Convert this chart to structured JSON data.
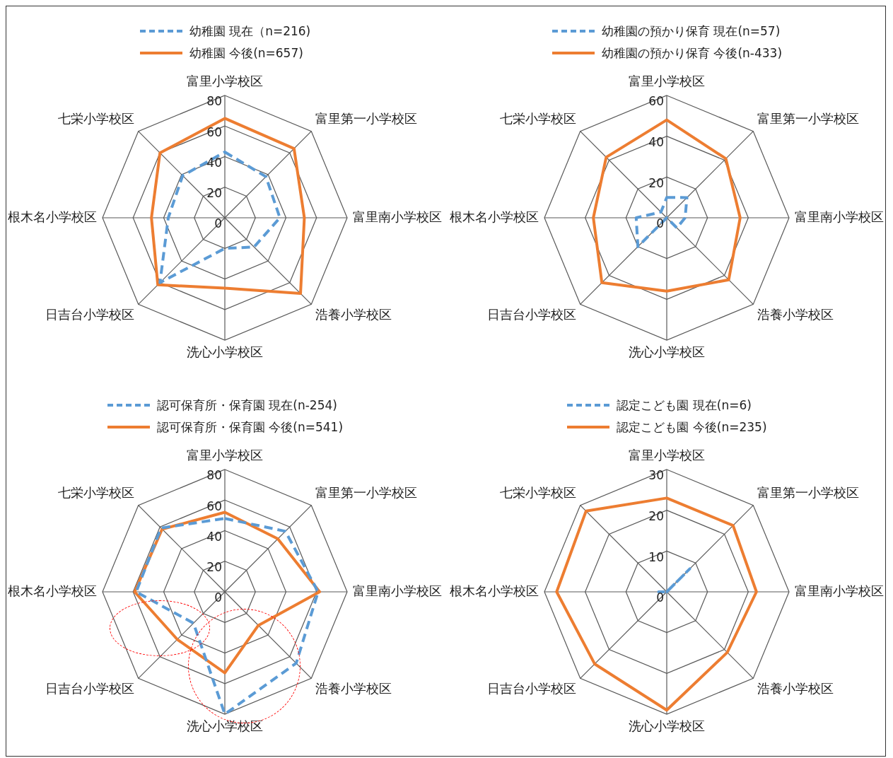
{
  "chart_data": [
    {
      "type": "radar",
      "categories": [
        "富里小学校区",
        "富里第一小学校区",
        "富里南小学校区",
        "浩養小学校区",
        "洗心小学校区",
        "日吉台小学校区",
        "根木名小学校区",
        "七栄小学校区"
      ],
      "ylim": [
        0,
        80
      ],
      "yticks": [
        0,
        20,
        40,
        60,
        80
      ],
      "legend": "top",
      "marker": "none",
      "grid": true,
      "series": [
        {
          "name": "幼稚園 現在（n=216)",
          "color": "#5b9bd5",
          "line_style": "dashed",
          "values": [
            43,
            38,
            36,
            27,
            20,
            60,
            37,
            39
          ]
        },
        {
          "name": "幼稚園 今後(n=657)",
          "color": "#ed7d31",
          "line_style": "solid",
          "values": [
            65,
            64,
            52,
            70,
            46,
            62,
            48,
            60
          ]
        }
      ]
    },
    {
      "type": "radar",
      "categories": [
        "富里小学校区",
        "富里第一小学校区",
        "富里南小学校区",
        "浩養小学校区",
        "洗心小学校区",
        "日吉台小学校区",
        "根木名小学校区",
        "七栄小学校区"
      ],
      "ylim": [
        0,
        60
      ],
      "yticks": [
        0,
        20,
        40,
        60
      ],
      "legend": "top",
      "marker": "none",
      "grid": true,
      "series": [
        {
          "name": "幼稚園の預かり保育 現在(n=57)",
          "color": "#5b9bd5",
          "line_style": "dashed",
          "values": [
            10,
            14,
            9,
            7,
            0,
            20,
            15,
            4
          ]
        },
        {
          "name": "幼稚園の預かり保育 今後(n-433)",
          "color": "#ed7d31",
          "line_style": "solid",
          "values": [
            48,
            41,
            36,
            43,
            36,
            45,
            36,
            42
          ]
        }
      ]
    },
    {
      "type": "radar",
      "categories": [
        "富里小学校区",
        "富里第一小学校区",
        "富里南小学校区",
        "浩養小学校区",
        "洗心小学校区",
        "日吉台小学校区",
        "根木名小学校区",
        "七栄小学校区"
      ],
      "ylim": [
        0,
        80
      ],
      "yticks": [
        0,
        20,
        40,
        60,
        80
      ],
      "legend": "top",
      "marker": "none",
      "grid": true,
      "series": [
        {
          "name": "認可保育所・保育園 現在(n-254)",
          "color": "#5b9bd5",
          "line_style": "dashed",
          "values": [
            48,
            56,
            61,
            66,
            80,
            29,
            58,
            59
          ]
        },
        {
          "name": "認可保育所・保育園 今後(n=541)",
          "color": "#ed7d31",
          "line_style": "solid",
          "values": [
            52,
            49,
            62,
            31,
            53,
            44,
            59,
            58
          ]
        }
      ]
    },
    {
      "type": "radar",
      "categories": [
        "富里小学校区",
        "富里第一小学校区",
        "富里南小学校区",
        "浩養小学校区",
        "洗心小学校区",
        "日吉台小学校区",
        "根木名小学校区",
        "七栄小学校区"
      ],
      "ylim": [
        0,
        30
      ],
      "yticks": [
        0,
        10,
        20,
        30
      ],
      "legend": "top",
      "marker": "none",
      "grid": true,
      "series": [
        {
          "name": "認定こども園 現在(n=6)",
          "color": "#5b9bd5",
          "line_style": "dashed",
          "values": [
            0,
            8,
            0,
            0,
            0,
            0,
            2,
            0
          ]
        },
        {
          "name": "認定こども園 今後(n=235)",
          "color": "#ed7d31",
          "line_style": "solid",
          "values": [
            23,
            23,
            22,
            21,
            29,
            25,
            27,
            28
          ]
        }
      ]
    }
  ]
}
